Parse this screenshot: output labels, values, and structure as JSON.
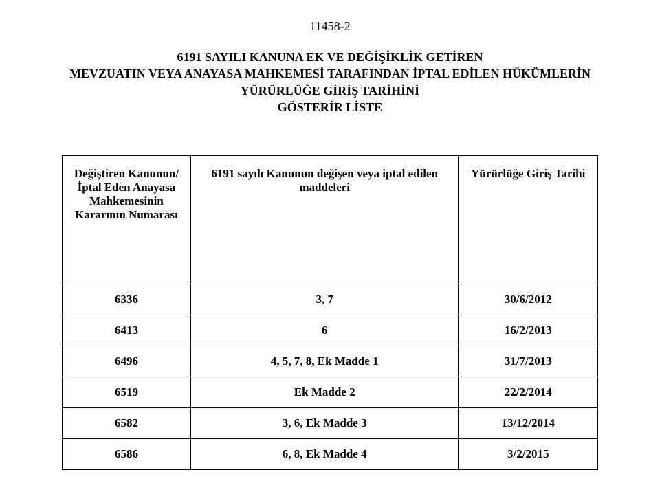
{
  "page_number": "11458-2",
  "title_line1": "6191 SAYILI KANUNA EK VE DEĞİŞİKLİK GETİREN",
  "title_line2": "MEVZUATIN VEYA ANAYASA MAHKEMESİ TARAFINDAN İPTAL EDİLEN HÜKÜMLERİN",
  "title_line3": "YÜRÜRLÜĞE GİRİŞ TARİHİNİ",
  "title_line4": "GÖSTERİR LİSTE",
  "table": {
    "headers": {
      "col1": "Değiştiren Kanunun/ İptal Eden Anayasa Mahkemesinin Kararının Numarası",
      "col2": "6191 sayılı Kanunun değişen veya iptal edilen maddeleri",
      "col3": "Yürürlüğe Giriş Tarihi"
    },
    "rows": [
      {
        "c1": "6336",
        "c2": "3, 7",
        "c3": "30/6/2012"
      },
      {
        "c1": "6413",
        "c2": "6",
        "c3": "16/2/2013"
      },
      {
        "c1": "6496",
        "c2": "4, 5, 7, 8, Ek Madde 1",
        "c3": "31/7/2013"
      },
      {
        "c1": "6519",
        "c2": "Ek Madde 2",
        "c3": "22/2/2014"
      },
      {
        "c1": "6582",
        "c2": "3, 6, Ek Madde 3",
        "c3": "13/12/2014"
      },
      {
        "c1": "6586",
        "c2": "6, 8, Ek Madde 4",
        "c3": "3/2/2015"
      }
    ]
  },
  "style": {
    "text_color": "#000000",
    "background_color": "#ffffff",
    "border_color": "#000000",
    "font_family": "Times New Roman",
    "page_number_fontsize": 18,
    "title_fontsize": 18,
    "cell_fontsize": 17
  }
}
